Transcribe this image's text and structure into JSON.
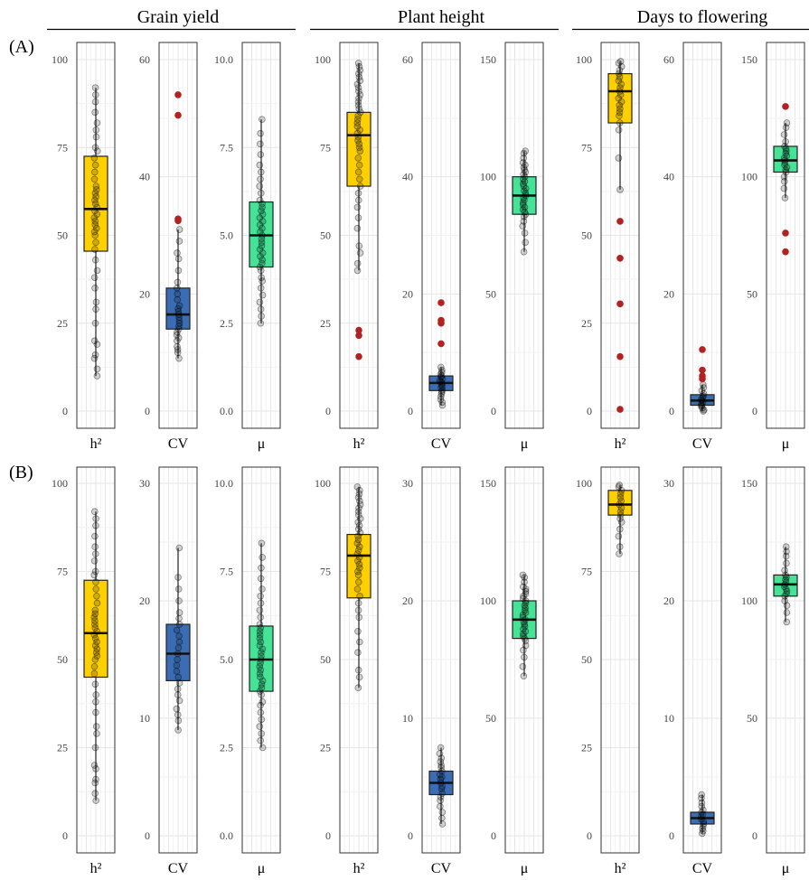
{
  "chart_data": {
    "type": "box",
    "group_titles": [
      "Grain yield",
      "Plant height",
      "Days to flowering"
    ],
    "row_labels": [
      "(A)",
      "(B)"
    ],
    "category_labels": [
      "h²",
      "CV",
      "μ"
    ],
    "colors": {
      "h2": "#ffd000",
      "cv": "#3a6db4",
      "mu": "#44e396",
      "outlier": "#b22222",
      "point": "#000000",
      "panel_border": "#333333",
      "grid_major": "#e6e6e6",
      "grid_minor": "#f2f2f2"
    },
    "panels": [
      {
        "row": "A",
        "group": "Grain yield",
        "category": "h²",
        "color_key": "h2",
        "ylim": [
          0,
          100
        ],
        "ticks": [
          "0",
          "25",
          "50",
          "75",
          "100"
        ],
        "box": {
          "q1": 45.5,
          "median": 57.5,
          "q3": 72.5,
          "whisker_low": 10,
          "whisker_high": 92
        },
        "points": [
          10,
          12,
          15,
          16,
          19,
          20,
          25,
          29,
          31,
          35,
          38,
          40,
          43,
          46,
          48,
          50,
          51,
          52,
          53,
          54,
          55,
          56,
          57,
          58,
          59,
          60,
          61,
          62,
          63,
          64,
          66,
          68,
          70,
          72,
          74,
          75,
          78,
          80,
          82,
          85,
          88,
          90,
          92
        ],
        "outliers": []
      },
      {
        "row": "A",
        "group": "Grain yield",
        "category": "CV",
        "color_key": "cv",
        "ylim": [
          0,
          60
        ],
        "ticks": [
          "0",
          "20",
          "40",
          "60"
        ],
        "box": {
          "q1": 14,
          "median": 16.5,
          "q3": 21,
          "whisker_low": 9,
          "whisker_high": 31
        },
        "points": [
          9,
          10,
          10.5,
          11,
          12,
          12.5,
          13,
          13.5,
          14,
          14.5,
          15,
          15.5,
          16,
          16.5,
          17,
          17.5,
          18,
          19,
          20,
          21,
          22,
          24,
          26,
          27,
          29,
          31
        ],
        "outliers": [
          32.5,
          32.8,
          50.5,
          54
        ]
      },
      {
        "row": "A",
        "group": "Grain yield",
        "category": "μ",
        "color_key": "mu",
        "ylim": [
          0,
          10
        ],
        "ticks": [
          "0.0",
          "2.5",
          "5.0",
          "7.5",
          "10.0"
        ],
        "box": {
          "q1": 4.1,
          "median": 5.0,
          "q3": 5.95,
          "whisker_low": 2.5,
          "whisker_high": 8.3
        },
        "points": [
          2.5,
          2.7,
          2.9,
          3.1,
          3.3,
          3.5,
          3.7,
          3.8,
          4.0,
          4.1,
          4.2,
          4.3,
          4.4,
          4.5,
          4.6,
          4.7,
          4.8,
          4.9,
          5.0,
          5.1,
          5.2,
          5.3,
          5.4,
          5.5,
          5.6,
          5.7,
          5.8,
          5.9,
          6.0,
          6.2,
          6.4,
          6.6,
          6.8,
          7.0,
          7.3,
          7.6,
          7.9,
          8.3
        ],
        "outliers": []
      },
      {
        "row": "A",
        "group": "Plant height",
        "category": "h²",
        "color_key": "h2",
        "ylim": [
          0,
          100
        ],
        "ticks": [
          "0",
          "25",
          "50",
          "75",
          "100"
        ],
        "box": {
          "q1": 64,
          "median": 78.5,
          "q3": 85,
          "whisker_low": 40,
          "whisker_high": 99
        },
        "points": [
          40,
          42,
          45,
          47,
          52,
          55,
          58,
          60,
          62,
          64,
          66,
          68,
          70,
          72,
          74,
          75,
          76,
          77,
          78,
          79,
          80,
          81,
          82,
          83,
          84,
          85,
          86,
          87,
          88,
          89,
          90,
          91,
          92,
          93,
          94,
          95,
          96,
          97,
          98,
          99
        ],
        "outliers": [
          15.5,
          21.5,
          23
        ]
      },
      {
        "row": "A",
        "group": "Plant height",
        "category": "CV",
        "color_key": "cv",
        "ylim": [
          0,
          60
        ],
        "ticks": [
          "0",
          "20",
          "40",
          "60"
        ],
        "box": {
          "q1": 3.5,
          "median": 4.8,
          "q3": 6,
          "whisker_low": 1,
          "whisker_high": 7.5
        },
        "points": [
          1,
          1.5,
          2,
          2.5,
          3,
          3.3,
          3.6,
          4,
          4.2,
          4.5,
          4.8,
          5,
          5.2,
          5.5,
          5.8,
          6,
          6.3,
          6.6,
          7,
          7.5
        ],
        "outliers": [
          11.5,
          15,
          15.5,
          18.5
        ]
      },
      {
        "row": "A",
        "group": "Plant height",
        "category": "μ",
        "color_key": "mu",
        "ylim": [
          0,
          150
        ],
        "ticks": [
          "0",
          "50",
          "100",
          "150"
        ],
        "box": {
          "q1": 84,
          "median": 92,
          "q3": 100,
          "whisker_low": 68,
          "whisker_high": 111
        },
        "points": [
          68,
          72,
          76,
          79,
          81,
          83,
          84,
          85,
          86,
          87,
          88,
          89,
          90,
          91,
          92,
          93,
          94,
          95,
          96,
          97,
          98,
          99,
          100,
          101,
          102,
          103,
          104,
          105,
          106,
          108,
          110,
          111
        ],
        "outliers": []
      },
      {
        "row": "A",
        "group": "Days to flowering",
        "category": "h²",
        "color_key": "h2",
        "ylim": [
          0,
          100
        ],
        "ticks": [
          "0",
          "25",
          "50",
          "75",
          "100"
        ],
        "box": {
          "q1": 82,
          "median": 91,
          "q3": 96,
          "whisker_low": 63,
          "whisker_high": 99.5
        },
        "points": [
          63,
          72,
          80,
          82,
          84,
          85,
          86,
          87,
          88,
          89,
          90,
          91,
          92,
          93,
          94,
          95,
          96,
          97,
          98,
          99,
          99.5
        ],
        "outliers": [
          0.5,
          15.5,
          30.5,
          43.5,
          54
        ]
      },
      {
        "row": "A",
        "group": "Days to flowering",
        "category": "CV",
        "color_key": "cv",
        "ylim": [
          0,
          60
        ],
        "ticks": [
          "0",
          "20",
          "40",
          "60"
        ],
        "box": {
          "q1": 1,
          "median": 1.8,
          "q3": 2.8,
          "whisker_low": 0,
          "whisker_high": 4.5
        },
        "points": [
          0,
          0.2,
          0.5,
          0.8,
          1,
          1.2,
          1.5,
          1.8,
          2,
          2.3,
          2.6,
          3,
          3.5,
          4,
          4.5
        ],
        "outliers": [
          5.5,
          6,
          7,
          10.5
        ]
      },
      {
        "row": "A",
        "group": "Days to flowering",
        "category": "μ",
        "color_key": "mu",
        "ylim": [
          0,
          150
        ],
        "ticks": [
          "0",
          "50",
          "100",
          "150"
        ],
        "box": {
          "q1": 102,
          "median": 107,
          "q3": 113,
          "whisker_low": 91,
          "whisker_high": 123
        },
        "points": [
          91,
          95,
          98,
          100,
          102,
          103,
          104,
          105,
          106,
          107,
          108,
          109,
          110,
          111,
          112,
          113,
          115,
          118,
          121,
          123
        ],
        "outliers": [
          68,
          76,
          130
        ]
      },
      {
        "row": "B",
        "group": "Grain yield",
        "category": "h²",
        "color_key": "h2",
        "ylim": [
          0,
          100
        ],
        "ticks": [
          "0",
          "25",
          "50",
          "75",
          "100"
        ],
        "box": {
          "q1": 45,
          "median": 57.5,
          "q3": 72.5,
          "whisker_low": 10,
          "whisker_high": 92
        },
        "points": [
          10,
          12,
          15,
          16,
          19,
          20,
          25,
          29,
          31,
          35,
          38,
          40,
          43,
          46,
          48,
          50,
          51,
          52,
          53,
          54,
          55,
          56,
          57,
          58,
          59,
          60,
          61,
          62,
          63,
          64,
          66,
          68,
          70,
          72,
          74,
          75,
          78,
          80,
          82,
          85,
          88,
          90,
          92
        ],
        "outliers": []
      },
      {
        "row": "B",
        "group": "Grain yield",
        "category": "CV",
        "color_key": "cv",
        "ylim": [
          0,
          30
        ],
        "ticks": [
          "0",
          "10",
          "20",
          "30"
        ],
        "box": {
          "q1": 13.2,
          "median": 15.5,
          "q3": 18,
          "whisker_low": 9,
          "whisker_high": 24.5
        },
        "points": [
          9,
          9.8,
          10.3,
          10.8,
          11.5,
          12,
          12.5,
          13,
          13.5,
          14,
          14.5,
          15,
          15.5,
          16,
          16.5,
          17,
          17.5,
          18,
          18.5,
          19,
          20,
          21,
          22,
          24.5
        ],
        "outliers": []
      },
      {
        "row": "B",
        "group": "Grain yield",
        "category": "μ",
        "color_key": "mu",
        "ylim": [
          0,
          10
        ],
        "ticks": [
          "0.0",
          "2.5",
          "5.0",
          "7.5",
          "10.0"
        ],
        "box": {
          "q1": 4.1,
          "median": 5.0,
          "q3": 5.95,
          "whisker_low": 2.5,
          "whisker_high": 8.3
        },
        "points": [
          2.5,
          2.7,
          2.9,
          3.1,
          3.3,
          3.5,
          3.7,
          3.8,
          4.0,
          4.1,
          4.2,
          4.3,
          4.4,
          4.5,
          4.6,
          4.7,
          4.8,
          4.9,
          5.0,
          5.1,
          5.2,
          5.3,
          5.4,
          5.5,
          5.6,
          5.7,
          5.8,
          5.9,
          6.0,
          6.2,
          6.4,
          6.6,
          6.8,
          7.0,
          7.3,
          7.6,
          7.9,
          8.3
        ],
        "outliers": []
      },
      {
        "row": "B",
        "group": "Plant height",
        "category": "h²",
        "color_key": "h2",
        "ylim": [
          0,
          100
        ],
        "ticks": [
          "0",
          "25",
          "50",
          "75",
          "100"
        ],
        "box": {
          "q1": 67.5,
          "median": 79.5,
          "q3": 85.5,
          "whisker_low": 42,
          "whisker_high": 99
        },
        "points": [
          42,
          45,
          47,
          52,
          55,
          58,
          62,
          64,
          66,
          68,
          70,
          72,
          74,
          75,
          76,
          77,
          78,
          79,
          80,
          81,
          82,
          83,
          84,
          85,
          86,
          87,
          88,
          89,
          90,
          91,
          92,
          93,
          94,
          95,
          96,
          97,
          98,
          99
        ],
        "outliers": []
      },
      {
        "row": "B",
        "group": "Plant height",
        "category": "CV",
        "color_key": "cv",
        "ylim": [
          0,
          30
        ],
        "ticks": [
          "0",
          "10",
          "20",
          "30"
        ],
        "box": {
          "q1": 3.5,
          "median": 4.5,
          "q3": 5.5,
          "whisker_low": 1,
          "whisker_high": 7.5
        },
        "points": [
          1,
          1.5,
          2,
          2.5,
          3,
          3.3,
          3.6,
          4,
          4.2,
          4.5,
          4.8,
          5,
          5.2,
          5.5,
          5.8,
          6,
          6.3,
          6.6,
          7,
          7.5
        ],
        "outliers": []
      },
      {
        "row": "B",
        "group": "Plant height",
        "category": "μ",
        "color_key": "mu",
        "ylim": [
          0,
          150
        ],
        "ticks": [
          "0",
          "50",
          "100",
          "150"
        ],
        "box": {
          "q1": 84,
          "median": 92,
          "q3": 100,
          "whisker_low": 68,
          "whisker_high": 111
        },
        "points": [
          68,
          72,
          76,
          79,
          81,
          83,
          84,
          85,
          86,
          87,
          88,
          89,
          90,
          91,
          92,
          93,
          94,
          95,
          96,
          97,
          98,
          99,
          100,
          101,
          102,
          103,
          104,
          105,
          106,
          108,
          110,
          111
        ],
        "outliers": []
      },
      {
        "row": "B",
        "group": "Days to flowering",
        "category": "h²",
        "color_key": "h2",
        "ylim": [
          0,
          100
        ],
        "ticks": [
          "0",
          "25",
          "50",
          "75",
          "100"
        ],
        "box": {
          "q1": 91,
          "median": 94,
          "q3": 98,
          "whisker_low": 80,
          "whisker_high": 99.5
        },
        "points": [
          80,
          82,
          85,
          87,
          89,
          90,
          91,
          92,
          93,
          94,
          95,
          96,
          97,
          98,
          99,
          99.5
        ],
        "outliers": []
      },
      {
        "row": "B",
        "group": "Days to flowering",
        "category": "CV",
        "color_key": "cv",
        "ylim": [
          0,
          30
        ],
        "ticks": [
          "0",
          "10",
          "20",
          "30"
        ],
        "box": {
          "q1": 1,
          "median": 1.5,
          "q3": 2,
          "whisker_low": 0.2,
          "whisker_high": 3.5
        },
        "points": [
          0.2,
          0.4,
          0.6,
          0.8,
          1,
          1.2,
          1.4,
          1.6,
          1.8,
          2,
          2.2,
          2.5,
          2.8,
          3.2,
          3.5
        ],
        "outliers": []
      },
      {
        "row": "B",
        "group": "Days to flowering",
        "category": "μ",
        "color_key": "mu",
        "ylim": [
          0,
          150
        ],
        "ticks": [
          "0",
          "50",
          "100",
          "150"
        ],
        "box": {
          "q1": 102,
          "median": 107,
          "q3": 111,
          "whisker_low": 91,
          "whisker_high": 123
        },
        "points": [
          91,
          95,
          98,
          100,
          102,
          103,
          104,
          105,
          106,
          107,
          108,
          109,
          110,
          111,
          113,
          116,
          119,
          121,
          123
        ],
        "outliers": []
      }
    ]
  }
}
